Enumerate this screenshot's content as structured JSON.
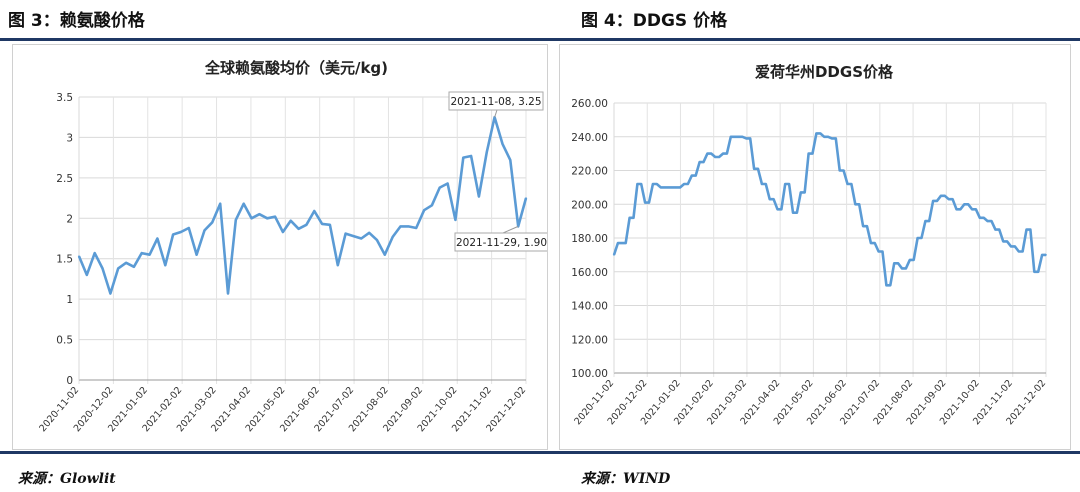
{
  "header": {
    "left_title": "图 3：赖氨酸价格",
    "right_title": "图 4：DDGS 价格"
  },
  "footer": {
    "left_source": "来源：Glowlit",
    "right_source": "来源：WIND"
  },
  "chart_data": [
    {
      "type": "line",
      "title": "全球赖氨酸均价（美元/kg)",
      "ylim": [
        0,
        3.5
      ],
      "yticks": [
        "0",
        "0.5",
        "1",
        "1.5",
        "2",
        "2.5",
        "3",
        "3.5"
      ],
      "xticks": [
        "2020-11-02",
        "2020-12-02",
        "2021-01-02",
        "2021-02-02",
        "2021-03-02",
        "2021-04-02",
        "2021-05-02",
        "2021-06-02",
        "2021-07-02",
        "2021-08-02",
        "2021-09-02",
        "2021-10-02",
        "2021-11-02",
        "2021-12-02"
      ],
      "annotations": [
        "2021-11-08, 3.25",
        "2021-11-29, 1.90"
      ],
      "grid": true,
      "color": "#5b9bd5",
      "series": [
        {
          "values": [
            1.53,
            1.3,
            1.57,
            1.38,
            1.07,
            1.38,
            1.45,
            1.4,
            1.57,
            1.55,
            1.75,
            1.42,
            1.8,
            1.83,
            1.88,
            1.55,
            1.85,
            1.95,
            2.18,
            1.07,
            1.98,
            2.18,
            2.0,
            2.05,
            2.0,
            2.02,
            1.83,
            1.97,
            1.87,
            1.92,
            2.09,
            1.93,
            1.92,
            1.42,
            1.81,
            1.78,
            1.75,
            1.82,
            1.73,
            1.55,
            1.77,
            1.9,
            1.9,
            1.88,
            2.1,
            2.16,
            2.38,
            2.43,
            1.98,
            2.75,
            2.77,
            2.27,
            2.82,
            3.25,
            2.92,
            2.72,
            1.9,
            2.25
          ]
        }
      ]
    },
    {
      "type": "line",
      "title": "爱荷华州DDGS价格",
      "ylim": [
        100,
        260
      ],
      "yticks": [
        "100.00",
        "120.00",
        "140.00",
        "160.00",
        "180.00",
        "200.00",
        "220.00",
        "240.00",
        "260.00"
      ],
      "xticks": [
        "2020-11-02",
        "2020-12-02",
        "2021-01-02",
        "2021-02-02",
        "2021-03-02",
        "2021-04-02",
        "2021-05-02",
        "2021-06-02",
        "2021-07-02",
        "2021-08-02",
        "2021-09-02",
        "2021-10-02",
        "2021-11-02",
        "2021-12-02"
      ],
      "grid": true,
      "color": "#5b9bd5",
      "series": [
        {
          "values": [
            170,
            177,
            177,
            177,
            192,
            192,
            212,
            212,
            201,
            201,
            212,
            212,
            210,
            210,
            210,
            210,
            210,
            210,
            212,
            212,
            217,
            217,
            225,
            225,
            230,
            230,
            228,
            228,
            230,
            230,
            240,
            240,
            240,
            240,
            239,
            239,
            221,
            221,
            212,
            212,
            203,
            203,
            197,
            197,
            212,
            212,
            195,
            195,
            207,
            207,
            230,
            230,
            242,
            242,
            240,
            240,
            239,
            239,
            220,
            220,
            212,
            212,
            200,
            200,
            187,
            187,
            177,
            177,
            172,
            172,
            152,
            152,
            165,
            165,
            162,
            162,
            167,
            167,
            180,
            180,
            190,
            190,
            202,
            202,
            205,
            205,
            203,
            203,
            197,
            197,
            200,
            200,
            197,
            197,
            192,
            192,
            190,
            190,
            185,
            185,
            178,
            178,
            175,
            175,
            172,
            172,
            185,
            185,
            160,
            160,
            170,
            170
          ]
        }
      ]
    }
  ]
}
